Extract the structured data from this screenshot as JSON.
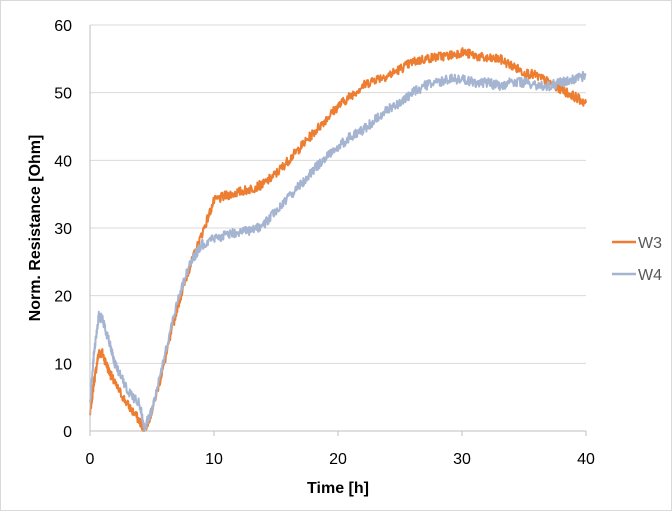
{
  "chart_data": {
    "type": "line",
    "title": "",
    "xlabel": "Time [h]",
    "ylabel": "Norm. Resistance [Ohm]",
    "xlim": [
      0,
      40
    ],
    "ylim": [
      0,
      60
    ],
    "xticks": [
      0,
      10,
      20,
      30,
      40
    ],
    "yticks": [
      0,
      10,
      20,
      30,
      40,
      50,
      60
    ],
    "grid": "horizontal",
    "legend_position": "right",
    "series": [
      {
        "name": "W3",
        "color": "#ed7d31",
        "x": [
          0,
          0.3,
          0.7,
          1,
          1.5,
          2,
          3,
          4,
          4.4,
          5,
          6,
          7,
          8,
          9,
          10,
          11,
          12,
          13,
          14,
          15,
          16,
          17,
          18,
          19,
          20,
          21,
          22,
          23,
          24,
          25,
          26,
          27,
          28,
          29,
          30,
          31,
          32,
          33,
          34,
          35,
          36,
          37,
          38,
          39,
          40
        ],
        "y": [
          2.5,
          7,
          11.5,
          11.5,
          9,
          7,
          4,
          1.5,
          0,
          3,
          10,
          18,
          24,
          29,
          34,
          34.8,
          35.3,
          35.8,
          36.5,
          38,
          40,
          42,
          44,
          46,
          48,
          49.5,
          51,
          52,
          52.5,
          53.5,
          54.5,
          55,
          55.3,
          55.5,
          56,
          55.5,
          55,
          55,
          54,
          53,
          52.5,
          51.5,
          50.5,
          49.5,
          48.5
        ]
      },
      {
        "name": "W4",
        "color": "#a5b4d0",
        "x": [
          0,
          0.3,
          0.7,
          1,
          1.5,
          2,
          3,
          4,
          4.4,
          5,
          6,
          7,
          8,
          9,
          10,
          11,
          12,
          13,
          14,
          15,
          16,
          17,
          18,
          19,
          20,
          21,
          22,
          23,
          24,
          25,
          26,
          27,
          28,
          29,
          30,
          31,
          32,
          33,
          34,
          35,
          36,
          37,
          38,
          39,
          40
        ],
        "y": [
          4,
          11,
          17,
          16.5,
          13.5,
          10,
          6,
          4,
          0.5,
          3,
          11,
          19,
          24.5,
          27.5,
          28.5,
          29,
          29.5,
          29.5,
          30.5,
          32.5,
          34.5,
          36.5,
          38.5,
          40.5,
          42,
          43.5,
          44.5,
          46,
          47.5,
          48.5,
          50,
          51,
          51.5,
          52,
          52,
          51.5,
          51.5,
          51,
          51.5,
          51.5,
          51,
          51,
          51.5,
          52,
          52.5
        ]
      }
    ]
  }
}
